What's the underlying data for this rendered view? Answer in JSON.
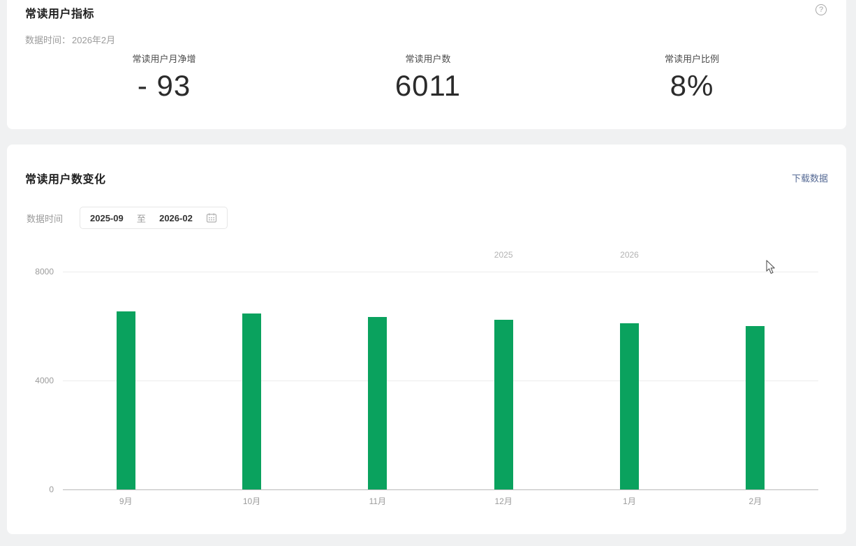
{
  "colors": {
    "page_bg": "#f0f1f2",
    "card_bg": "#ffffff",
    "bar_green": "#0aa25e",
    "link_blue": "#576b95",
    "muted_gray": "#9b9b9b"
  },
  "metrics_card": {
    "title": "常读用户指标",
    "subtitle_label": "数据时间：",
    "subtitle_value": "2026年2月",
    "help_icon": "question-mark-circle-icon",
    "help_glyph": "?",
    "metrics": [
      {
        "label": "常读用户月净增",
        "value": "- 93"
      },
      {
        "label": "常读用户数",
        "value": "6011"
      },
      {
        "label": "常读用户比例",
        "value": "8%"
      }
    ]
  },
  "chart_card": {
    "title": "常读用户数变化",
    "download_label": "下载数据",
    "date_filter": {
      "label": "数据时间",
      "start": "2025-09",
      "separator": "至",
      "end": "2026-02",
      "icon": "calendar-icon"
    }
  },
  "chart_data": {
    "type": "bar",
    "title": "常读用户数变化",
    "categories": [
      "9月",
      "10月",
      "11月",
      "12月",
      "1月",
      "2月"
    ],
    "values": [
      6540,
      6460,
      6330,
      6230,
      6104,
      6011
    ],
    "ylim": [
      0,
      8000
    ],
    "yticks": [
      0,
      4000,
      8000
    ],
    "bar_color": "#0aa25e",
    "grid": true,
    "legend": false,
    "year_markers": [
      {
        "label": "2025",
        "slot_index": 3
      },
      {
        "label": "2026",
        "slot_index": 4
      }
    ]
  }
}
